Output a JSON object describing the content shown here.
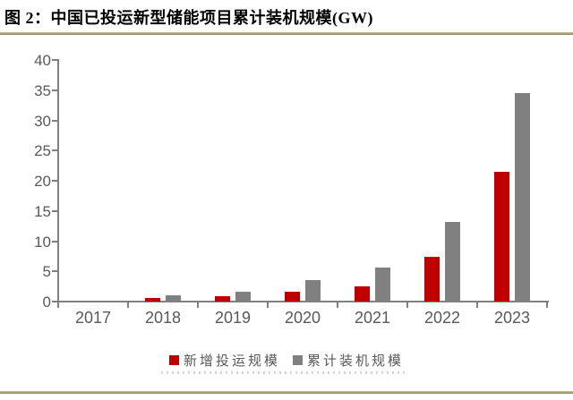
{
  "figure": {
    "title": "图 2：中国已投运新型储能项目累计装机规模(GW)"
  },
  "colors": {
    "accent_rule_gold": "#9a9161",
    "bar_new_red": "#c00000",
    "bar_cumulative_gray": "#808080",
    "axis_gray": "#7f7f7f",
    "label_gray": "#595959",
    "title_black": "#000000",
    "background": "#ffffff"
  },
  "chart_data": {
    "type": "bar",
    "title": "中国已投运新型储能项目累计装机规模(GW)",
    "xlabel": "",
    "ylabel": "",
    "categories": [
      "2017",
      "2018",
      "2019",
      "2020",
      "2021",
      "2022",
      "2023"
    ],
    "series": [
      {
        "name": "新增投运规模",
        "color": "#c00000",
        "values": [
          0,
          0.6,
          0.9,
          1.7,
          2.5,
          7.4,
          21.5
        ]
      },
      {
        "name": "累计装机规模",
        "color": "#808080",
        "values": [
          0,
          1.1,
          1.7,
          3.5,
          5.7,
          13.2,
          34.5
        ]
      }
    ],
    "ylim": [
      0,
      40
    ],
    "yticks": [
      0,
      5,
      10,
      15,
      20,
      25,
      30,
      35,
      40
    ],
    "grid": false,
    "legend_position": "bottom",
    "units": "GW"
  }
}
